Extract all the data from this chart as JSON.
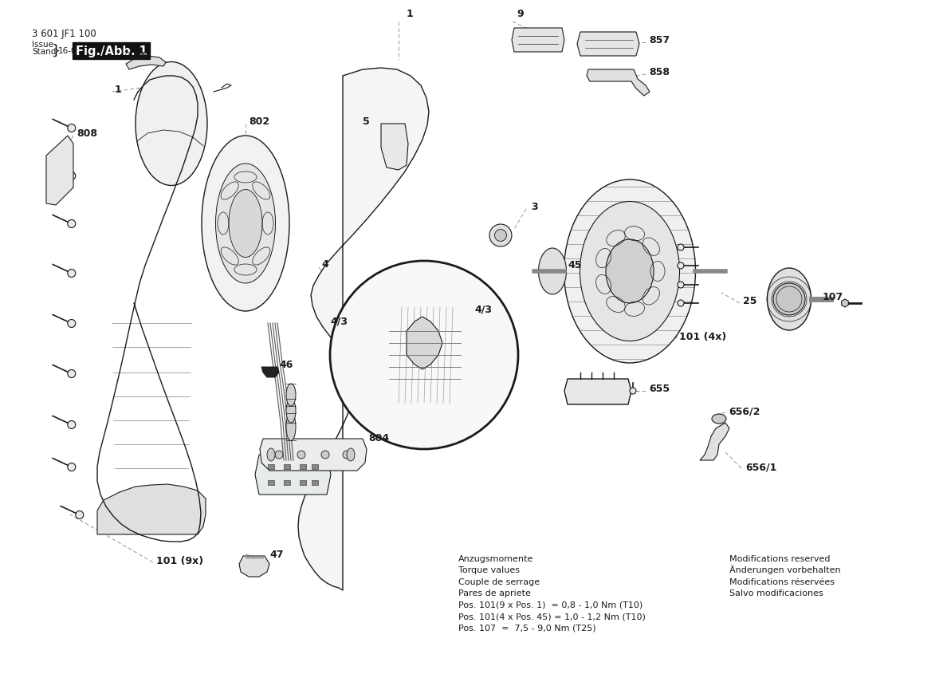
{
  "title": "3 601 JF1 100",
  "issue_date": "16-09-13",
  "fig_label": "Fig./Abb. 1",
  "background_color": "#ffffff",
  "line_color": "#1a1a1a",
  "label_color": "#1a1a1a",
  "leader_color": "#8899aa",
  "fig_label_bg": "#111111",
  "fig_label_text_color": "#ffffff",
  "bottom_text_left_bold": [
    "Anzugsmomente",
    "Torque values",
    "Couple de serrage",
    "Pares de apriete"
  ],
  "bottom_text_left_normal": [
    "Pos. 101(9 x Pos. 1)  = 0,8 - 1,0 Nm (T10)",
    "Pos. 101(4 x Pos. 45) = 1,0 - 1,2 Nm (T10)",
    "Pos. 107  =  7,5 - 9,0 Nm (T25)"
  ],
  "bottom_text_right": [
    "Modifications reserved",
    "Änderungen vorbehalten",
    "Modifications réservées",
    "Salvo modificaciones"
  ]
}
